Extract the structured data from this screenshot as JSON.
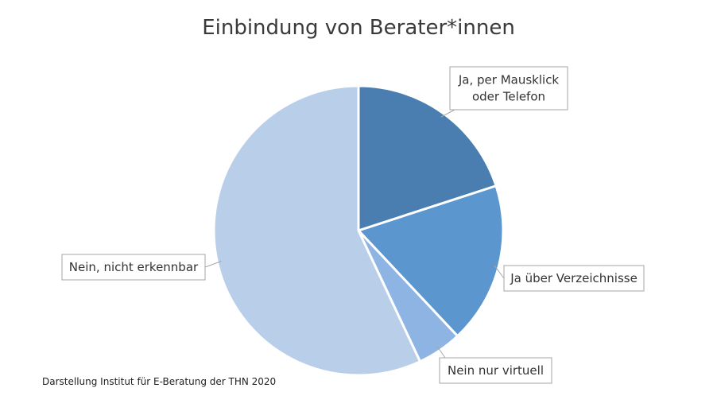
{
  "chart_data": {
    "type": "pie",
    "title": "Einbindung von Berater*innen",
    "slices": [
      {
        "label": "Ja, per Mausklick oder Telefon",
        "value": 20,
        "color": "#4a7eb0"
      },
      {
        "label": "Ja über Verzeichnisse",
        "value": 18,
        "color": "#5b96cf"
      },
      {
        "label": "Nein nur virtuell",
        "value": 5,
        "color": "#8eb4e3"
      },
      {
        "label": "Nein, nicht erkennbar",
        "value": 57,
        "color": "#b9cee9"
      }
    ],
    "legend": "callout-labels",
    "source": "Darstellung Institut für E-Beratung der THN 2020"
  }
}
